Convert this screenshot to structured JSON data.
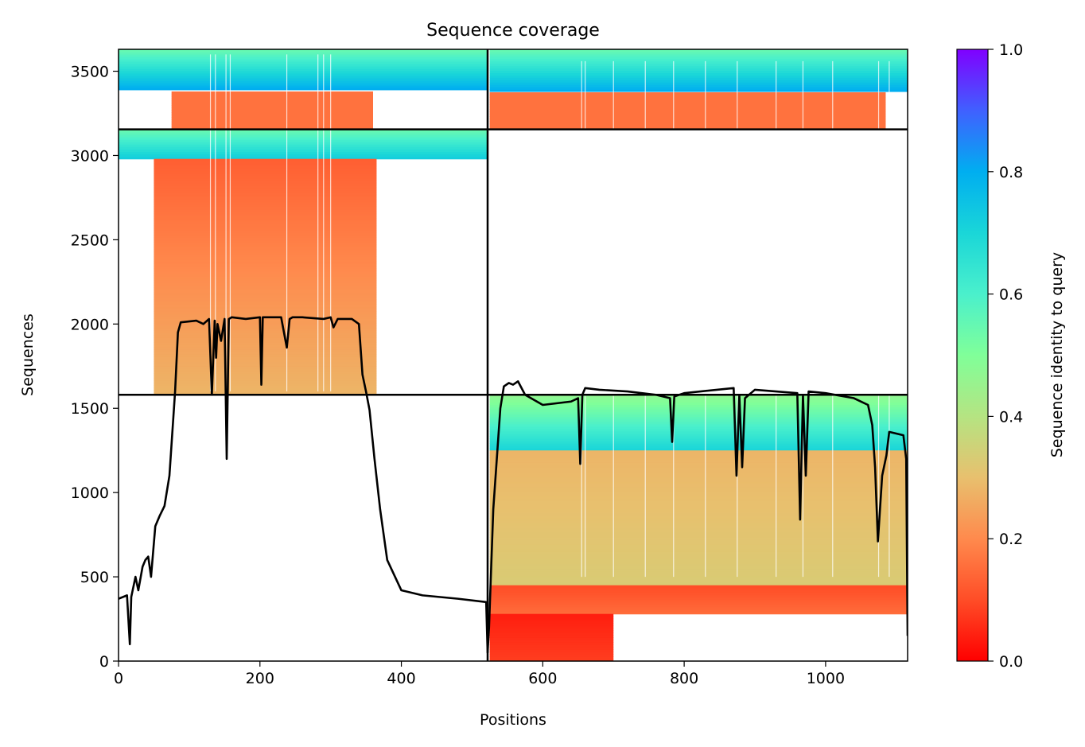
{
  "chart_data": {
    "type": "heatmap",
    "title": "Sequence coverage",
    "xlabel": "Positions",
    "ylabel": "Sequences",
    "colorbar_label": "Sequence identity to query",
    "colormap": "rainbow_r",
    "xlim": [
      0,
      1116
    ],
    "ylim": [
      0,
      3630
    ],
    "x_ticks": [
      0,
      200,
      400,
      600,
      800,
      1000
    ],
    "y_ticks": [
      0,
      500,
      1000,
      1500,
      2000,
      2500,
      3000,
      3500
    ],
    "colorbar_ticks": [
      0.0,
      0.2,
      0.4,
      0.6,
      0.8,
      1.0
    ],
    "colorbar_tick_labels": [
      "0.0",
      "0.2",
      "0.4",
      "0.6",
      "0.8",
      "1.0"
    ],
    "domain_boundary_position": 522,
    "group_boundaries": [
      1580,
      3155
    ],
    "blocks": [
      {
        "x": [
          0,
          522
        ],
        "y": [
          3390,
          3630
        ],
        "identity": [
          0.8,
          0.55
        ]
      },
      {
        "x": [
          75,
          360
        ],
        "y": [
          3160,
          3380
        ],
        "identity": [
          0.16,
          0.16
        ]
      },
      {
        "x": [
          525,
          1116
        ],
        "y": [
          3380,
          3630
        ],
        "identity": [
          0.8,
          0.55
        ]
      },
      {
        "x": [
          525,
          1085
        ],
        "y": [
          3160,
          3375
        ],
        "identity": [
          0.16,
          0.16
        ]
      },
      {
        "x": [
          0,
          522
        ],
        "y": [
          2980,
          3155
        ],
        "identity": [
          0.72,
          0.55
        ]
      },
      {
        "x": [
          50,
          365
        ],
        "y": [
          1580,
          2980
        ],
        "identity": [
          0.28,
          0.13
        ]
      },
      {
        "x": [
          525,
          1116
        ],
        "y": [
          1250,
          1580
        ],
        "identity": [
          0.7,
          0.47
        ]
      },
      {
        "x": [
          525,
          1116
        ],
        "y": [
          450,
          1250
        ],
        "identity": [
          0.33,
          0.28
        ]
      },
      {
        "x": [
          525,
          1116
        ],
        "y": [
          280,
          450
        ],
        "identity": [
          0.15,
          0.1
        ]
      },
      {
        "x": [
          525,
          700
        ],
        "y": [
          0,
          280
        ],
        "identity": [
          0.08,
          0.04
        ]
      }
    ],
    "coverage_line": {
      "name": "",
      "x": [
        0,
        12,
        16,
        18,
        24,
        28,
        34,
        38,
        42,
        46,
        52,
        58,
        65,
        72,
        80,
        84,
        88,
        110,
        120,
        128,
        132,
        136,
        138,
        140,
        145,
        150,
        153,
        156,
        160,
        180,
        200,
        202,
        204,
        210,
        230,
        238,
        242,
        246,
        260,
        290,
        300,
        304,
        310,
        330,
        340,
        345,
        350,
        355,
        362,
        370,
        380,
        400,
        430,
        480,
        520,
        522,
        524,
        530,
        540,
        545,
        552,
        558,
        565,
        575,
        600,
        640,
        650,
        653,
        656,
        660,
        680,
        720,
        760,
        780,
        783,
        786,
        800,
        870,
        874,
        878,
        882,
        886,
        900,
        960,
        964,
        968,
        972,
        976,
        1000,
        1040,
        1060,
        1066,
        1070,
        1074,
        1080,
        1086,
        1090,
        1100,
        1110,
        1114,
        1116
      ],
      "y": [
        370,
        390,
        100,
        380,
        500,
        420,
        560,
        600,
        620,
        500,
        800,
        860,
        920,
        1100,
        1600,
        1950,
        2010,
        2020,
        2000,
        2030,
        1580,
        2020,
        1800,
        2000,
        1900,
        2030,
        1200,
        2030,
        2040,
        2030,
        2040,
        1640,
        2040,
        2040,
        2040,
        1860,
        2030,
        2040,
        2040,
        2030,
        2040,
        1980,
        2030,
        2030,
        2000,
        1700,
        1600,
        1490,
        1200,
        900,
        600,
        420,
        390,
        370,
        350,
        50,
        200,
        900,
        1500,
        1630,
        1650,
        1640,
        1660,
        1580,
        1520,
        1540,
        1560,
        1170,
        1580,
        1620,
        1610,
        1600,
        1580,
        1560,
        1300,
        1570,
        1590,
        1620,
        1100,
        1580,
        1150,
        1560,
        1610,
        1590,
        840,
        1580,
        1100,
        1600,
        1590,
        1560,
        1520,
        1400,
        1150,
        710,
        1100,
        1220,
        1360,
        1350,
        1340,
        1200,
        150
      ]
    }
  }
}
